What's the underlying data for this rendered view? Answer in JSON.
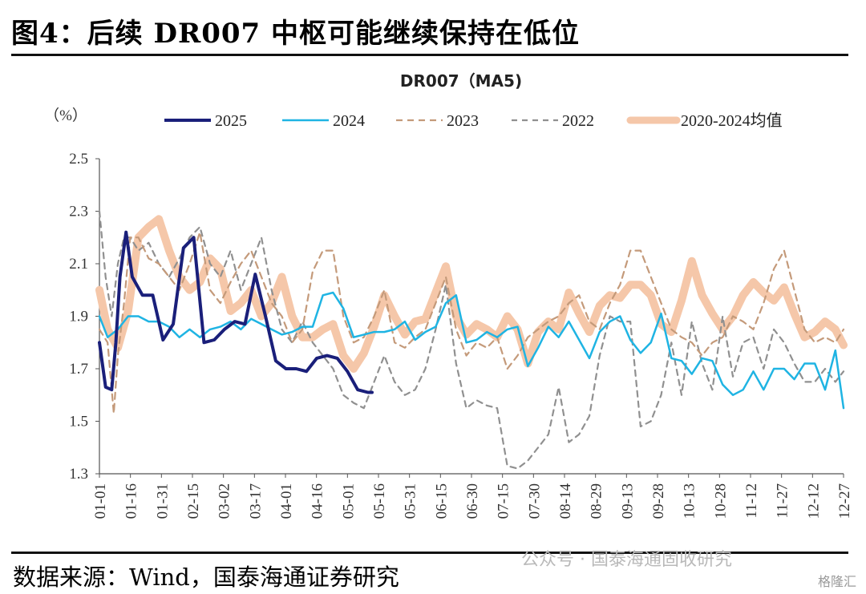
{
  "figure": {
    "title": "图4：后续 DR007 中枢可能继续保持在低位",
    "source_label": "数据来源：",
    "source_text": "Wind，国泰海通证券研究",
    "watermark": "公众号 · 国泰海通固收研究",
    "watermark_logo": "格隆汇"
  },
  "chart_data": {
    "type": "line",
    "title": "DR007（MA5)",
    "ylabel": "（%）",
    "ylim": [
      1.3,
      2.5
    ],
    "yticks": [
      1.3,
      1.5,
      1.7,
      1.9,
      2.1,
      2.3,
      2.5
    ],
    "grid": false,
    "legend_position": "top",
    "x_tick_labels": [
      "01-01",
      "01-16",
      "01-31",
      "02-15",
      "03-02",
      "03-17",
      "04-01",
      "04-16",
      "05-01",
      "05-16",
      "05-31",
      "06-15",
      "06-30",
      "07-15",
      "07-30",
      "08-14",
      "08-29",
      "09-13",
      "09-28",
      "10-13",
      "10-28",
      "11-12",
      "11-27",
      "12-12",
      "12-27"
    ],
    "series": [
      {
        "name": "2025",
        "color": "#1a1f7a",
        "dash": "solid",
        "width": 4,
        "x": [
          1,
          4,
          7,
          9,
          11,
          14,
          17,
          22,
          27,
          32,
          37,
          42,
          47,
          52,
          57,
          62,
          67,
          72,
          77,
          82,
          87,
          92,
          97,
          102,
          107,
          112,
          117,
          122,
          127,
          132,
          134
        ],
        "y": [
          1.8,
          1.63,
          1.62,
          1.8,
          2.05,
          2.22,
          2.05,
          1.98,
          1.98,
          1.81,
          1.87,
          2.16,
          2.2,
          1.8,
          1.81,
          1.85,
          1.88,
          1.87,
          2.06,
          1.9,
          1.73,
          1.7,
          1.7,
          1.69,
          1.74,
          1.75,
          1.74,
          1.69,
          1.62,
          1.61,
          1.61
        ]
      },
      {
        "name": "2024",
        "color": "#1fb4e3",
        "dash": "solid",
        "width": 2.5,
        "x": [
          1,
          5,
          10,
          15,
          20,
          25,
          30,
          35,
          40,
          45,
          50,
          55,
          60,
          65,
          70,
          75,
          80,
          85,
          90,
          95,
          100,
          105,
          110,
          115,
          120,
          125,
          130,
          135,
          140,
          145,
          150,
          155,
          160,
          165,
          170,
          175,
          180,
          185,
          190,
          195,
          200,
          205,
          210,
          215,
          220,
          225,
          230,
          235,
          240,
          245,
          250,
          255,
          260,
          265,
          270,
          275,
          280,
          285,
          290,
          295,
          300,
          305,
          310,
          315,
          320,
          325,
          330,
          335,
          340,
          345,
          350,
          355,
          360,
          364
        ],
        "y": [
          1.9,
          1.82,
          1.85,
          1.9,
          1.9,
          1.88,
          1.88,
          1.86,
          1.82,
          1.85,
          1.82,
          1.85,
          1.86,
          1.88,
          1.85,
          1.89,
          1.87,
          1.85,
          1.83,
          1.84,
          1.86,
          1.86,
          1.98,
          1.99,
          1.93,
          1.82,
          1.83,
          1.84,
          1.84,
          1.85,
          1.88,
          1.81,
          1.84,
          1.86,
          1.95,
          1.98,
          1.8,
          1.81,
          1.84,
          1.82,
          1.85,
          1.86,
          1.71,
          1.78,
          1.86,
          1.82,
          1.88,
          1.81,
          1.74,
          1.84,
          1.88,
          1.9,
          1.81,
          1.76,
          1.8,
          1.91,
          1.74,
          1.73,
          1.68,
          1.74,
          1.73,
          1.64,
          1.6,
          1.62,
          1.69,
          1.62,
          1.7,
          1.7,
          1.66,
          1.72,
          1.72,
          1.62,
          1.77,
          1.55
        ]
      },
      {
        "name": "2023",
        "color": "#c49a7a",
        "dash": "8,6",
        "width": 2.2,
        "x": [
          1,
          5,
          8,
          10,
          13,
          16,
          20,
          25,
          30,
          35,
          40,
          45,
          50,
          55,
          60,
          65,
          70,
          75,
          80,
          85,
          90,
          95,
          100,
          105,
          110,
          115,
          120,
          125,
          130,
          135,
          140,
          145,
          150,
          155,
          160,
          165,
          170,
          175,
          180,
          185,
          190,
          195,
          200,
          205,
          210,
          215,
          220,
          225,
          230,
          235,
          240,
          245,
          250,
          255,
          260,
          265,
          270,
          275,
          280,
          285,
          290,
          295,
          300,
          305,
          310,
          315,
          320,
          325,
          330,
          335,
          340,
          345,
          350,
          355,
          360,
          364
        ],
        "y": [
          1.85,
          1.8,
          1.53,
          1.75,
          1.95,
          2.2,
          2.2,
          2.12,
          2.1,
          2.05,
          2.0,
          2.1,
          2.22,
          2.0,
          1.95,
          2.03,
          2.1,
          2.15,
          2.05,
          1.95,
          1.9,
          1.8,
          1.85,
          2.07,
          2.15,
          2.15,
          1.9,
          1.8,
          1.82,
          1.9,
          2.0,
          1.8,
          1.78,
          1.82,
          1.85,
          1.95,
          2.05,
          1.85,
          1.75,
          1.8,
          1.78,
          1.82,
          1.7,
          1.75,
          1.82,
          1.85,
          1.88,
          1.9,
          1.95,
          1.98,
          1.88,
          1.85,
          1.95,
          2.02,
          2.15,
          2.15,
          2.05,
          1.95,
          1.85,
          1.82,
          1.8,
          1.75,
          1.8,
          1.82,
          1.9,
          1.88,
          1.85,
          1.95,
          2.08,
          2.15,
          2.0,
          1.85,
          1.8,
          1.82,
          1.8,
          1.85
        ]
      },
      {
        "name": "2022",
        "color": "#909090",
        "dash": "7,6",
        "width": 2.2,
        "x": [
          1,
          4,
          7,
          10,
          13,
          16,
          20,
          25,
          30,
          35,
          40,
          45,
          50,
          55,
          60,
          65,
          70,
          75,
          80,
          85,
          90,
          95,
          100,
          105,
          110,
          115,
          120,
          125,
          130,
          135,
          140,
          145,
          150,
          155,
          160,
          165,
          170,
          175,
          180,
          185,
          190,
          195,
          200,
          205,
          210,
          215,
          220,
          225,
          230,
          235,
          240,
          245,
          250,
          255,
          260,
          265,
          270,
          275,
          280,
          285,
          290,
          295,
          300,
          305,
          310,
          315,
          320,
          325,
          330,
          335,
          340,
          345,
          350,
          355,
          360,
          364
        ],
        "y": [
          2.3,
          2.05,
          1.9,
          2.1,
          2.2,
          2.2,
          2.15,
          2.18,
          2.1,
          2.05,
          2.12,
          2.2,
          2.24,
          2.1,
          2.05,
          2.15,
          2.0,
          2.1,
          2.2,
          2.0,
          1.85,
          1.8,
          1.88,
          1.8,
          1.75,
          1.7,
          1.6,
          1.57,
          1.55,
          1.65,
          1.75,
          1.65,
          1.6,
          1.62,
          1.7,
          1.85,
          2.02,
          1.72,
          1.55,
          1.58,
          1.56,
          1.55,
          1.33,
          1.32,
          1.35,
          1.4,
          1.45,
          1.63,
          1.42,
          1.45,
          1.52,
          1.75,
          1.9,
          1.88,
          1.88,
          1.48,
          1.5,
          1.6,
          1.8,
          1.6,
          1.88,
          1.72,
          1.62,
          1.9,
          1.67,
          1.8,
          1.82,
          1.7,
          1.85,
          1.8,
          1.72,
          1.65,
          1.65,
          1.7,
          1.65,
          1.69
        ]
      },
      {
        "name": "2020-2024均值",
        "color": "#f5c7a9",
        "dash": "solid",
        "width": 10,
        "x": [
          1,
          5,
          10,
          15,
          20,
          25,
          30,
          35,
          40,
          45,
          50,
          55,
          60,
          65,
          70,
          75,
          80,
          85,
          90,
          95,
          100,
          105,
          110,
          115,
          120,
          125,
          130,
          135,
          140,
          145,
          150,
          155,
          160,
          165,
          170,
          175,
          180,
          185,
          190,
          195,
          200,
          205,
          210,
          215,
          220,
          225,
          230,
          235,
          240,
          245,
          250,
          255,
          260,
          265,
          270,
          275,
          280,
          285,
          290,
          295,
          300,
          305,
          310,
          315,
          320,
          325,
          330,
          335,
          340,
          345,
          350,
          355,
          360,
          364
        ],
        "y": [
          2.0,
          1.85,
          1.78,
          1.92,
          2.2,
          2.24,
          2.27,
          2.15,
          2.05,
          2.0,
          2.03,
          2.12,
          2.08,
          1.92,
          1.95,
          2.0,
          1.9,
          1.95,
          2.05,
          1.9,
          1.82,
          1.82,
          1.85,
          1.87,
          1.75,
          1.7,
          1.76,
          1.86,
          1.98,
          1.9,
          1.83,
          1.88,
          1.89,
          1.99,
          2.09,
          1.9,
          1.83,
          1.87,
          1.85,
          1.82,
          1.9,
          1.85,
          1.72,
          1.84,
          1.88,
          1.85,
          1.99,
          1.91,
          1.84,
          1.94,
          1.98,
          1.97,
          2.02,
          2.02,
          1.98,
          1.87,
          1.84,
          1.96,
          2.11,
          1.98,
          1.91,
          1.85,
          1.9,
          1.98,
          2.03,
          1.99,
          1.96,
          2.01,
          1.91,
          1.82,
          1.84,
          1.88,
          1.85,
          1.79
        ]
      }
    ]
  }
}
